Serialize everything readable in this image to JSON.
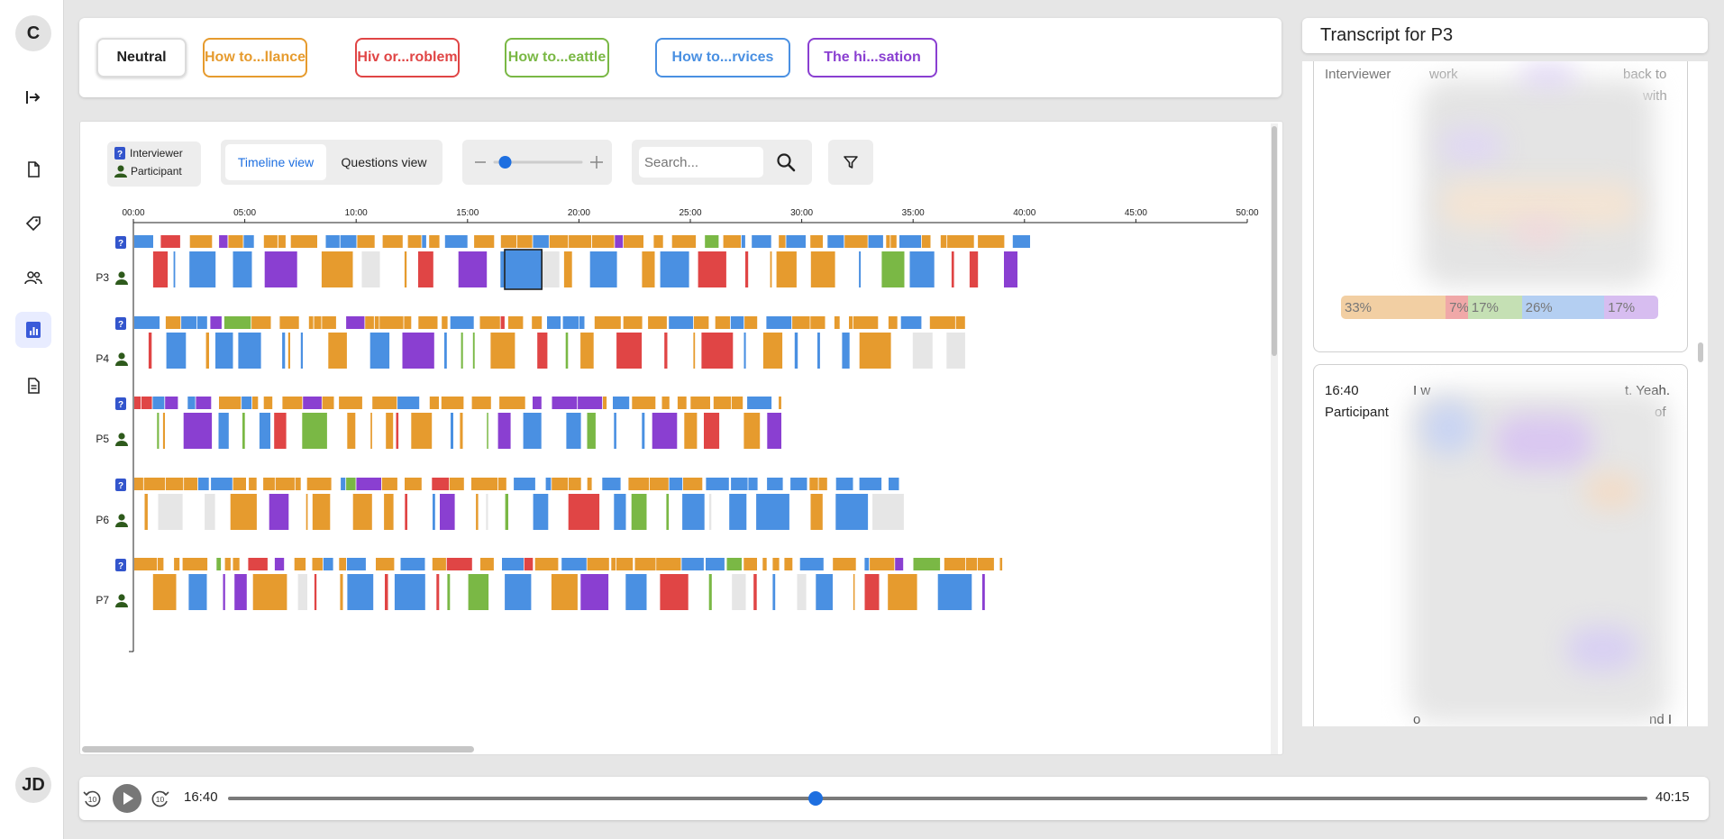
{
  "sidebar": {
    "top_avatar": "C",
    "bottom_avatar": "JD",
    "items": [
      {
        "icon": "exit-arrow-icon"
      },
      {
        "icon": "document-icon"
      },
      {
        "icon": "tag-icon"
      },
      {
        "icon": "users-icon"
      },
      {
        "icon": "chart-icon",
        "active": true
      },
      {
        "icon": "report-icon"
      }
    ]
  },
  "tags": [
    {
      "label": "Neutral",
      "color": "#222222"
    },
    {
      "label": "How to...llance",
      "color": "#e69b2e"
    },
    {
      "label": "Hiv or...roblem",
      "color": "#e04545"
    },
    {
      "label": "How to...eattle",
      "color": "#7ab845"
    },
    {
      "label": "How to...rvices",
      "color": "#4a90e2"
    },
    {
      "label": "The hi...sation",
      "color": "#8a3fd1"
    }
  ],
  "legend": {
    "interviewer": "Interviewer",
    "participant": "Participant"
  },
  "views": {
    "timeline": "Timeline view",
    "questions": "Questions view",
    "active": "timeline"
  },
  "zoom": {
    "minus": "−",
    "plus": "+",
    "level": 0.12
  },
  "search": {
    "placeholder": "Search..."
  },
  "timeline": {
    "ticks": [
      "00:00",
      "05:00",
      "10:00",
      "15:00",
      "20:00",
      "25:00",
      "30:00",
      "35:00",
      "40:00",
      "45:00",
      "50:00"
    ],
    "tick_max_seconds": 3000,
    "selected": {
      "row": "P3",
      "start_seconds": 1000,
      "end_seconds": 1100
    },
    "rows": [
      {
        "label": "P3",
        "length_seconds": 2415
      },
      {
        "label": "P4",
        "length_seconds": 2240
      },
      {
        "label": "P5",
        "length_seconds": 1745
      },
      {
        "label": "P6",
        "length_seconds": 2075
      },
      {
        "label": "P7",
        "length_seconds": 2340
      }
    ]
  },
  "transcript": {
    "title": "Transcript for P3",
    "card1": {
      "speaker": "Interviewer",
      "words_left": "work",
      "words_right": "back to",
      "words_right2": "with"
    },
    "percentages": [
      {
        "label": "33%",
        "value": 33,
        "color": "#f2cfa3"
      },
      {
        "label": "7%",
        "value": 7,
        "color": "#f0a8a8"
      },
      {
        "label": "17%",
        "value": 17,
        "color": "#c5e0b4"
      },
      {
        "label": "26%",
        "value": 26,
        "color": "#b4cff2"
      },
      {
        "label": "17%",
        "value": 17,
        "color": "#d7bdf0"
      }
    ],
    "card2": {
      "time": "16:40",
      "speaker": "Participant",
      "word_a": "I w",
      "word_b": "t. Yeah.",
      "word_c": "of",
      "word_d": "o",
      "word_e": "nd I"
    }
  },
  "player": {
    "current": "16:40",
    "total": "40:15",
    "progress": 0.414,
    "skip_back": "10",
    "skip_fwd": "10"
  },
  "colors": {
    "orange": "#e69b2e",
    "red": "#e04545",
    "green": "#7ab845",
    "blue": "#4a90e2",
    "purple": "#8a3fd1",
    "grey": "#e6e6e6",
    "interviewer_icon": "#3355cc",
    "participant_icon": "#2e5a1c"
  }
}
